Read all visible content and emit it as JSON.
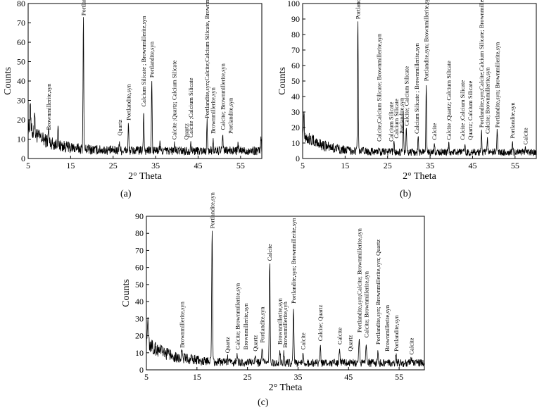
{
  "chart_data": [
    {
      "type": "line",
      "panel_label": "(a)",
      "xlabel": "2° Theta",
      "ylabel": "Counts",
      "xlim": [
        5,
        60
      ],
      "ylim": [
        0,
        80
      ],
      "x_ticks": [
        5,
        15,
        25,
        35,
        45,
        55
      ],
      "y_ticks": [
        0,
        10,
        20,
        30,
        40,
        50,
        60,
        70,
        80
      ],
      "background": 4,
      "peaks": [
        {
          "x": 5.5,
          "y": 20
        },
        {
          "x": 6.5,
          "y": 17
        },
        {
          "x": 9.8,
          "y": 11
        },
        {
          "x": 12.0,
          "y": 14
        },
        {
          "x": 18.0,
          "y": 72
        },
        {
          "x": 26.5,
          "y": 9
        },
        {
          "x": 28.6,
          "y": 17
        },
        {
          "x": 32.2,
          "y": 25
        },
        {
          "x": 34.1,
          "y": 40
        },
        {
          "x": 36.0,
          "y": 8
        },
        {
          "x": 39.4,
          "y": 7
        },
        {
          "x": 43.3,
          "y": 9
        },
        {
          "x": 47.1,
          "y": 19
        },
        {
          "x": 48.5,
          "y": 10
        },
        {
          "x": 50.8,
          "y": 13
        },
        {
          "x": 54.4,
          "y": 7
        },
        {
          "x": 59.8,
          "y": 12
        }
      ],
      "annotations": [
        {
          "x": 9.8,
          "y": 14,
          "text": "Brownmillerite,syn"
        },
        {
          "x": 18.0,
          "y": 73,
          "text": "Portlandite,syn"
        },
        {
          "x": 26.5,
          "y": 11,
          "text": "Quartz"
        },
        {
          "x": 28.6,
          "y": 19,
          "text": "Portlandite,syn"
        },
        {
          "x": 32.2,
          "y": 26,
          "text": "Calcium Silicate ; Brownmillerite,syn"
        },
        {
          "x": 34.1,
          "y": 41,
          "text": "Portlandite,syn"
        },
        {
          "x": 39.4,
          "y": 9,
          "text": "Calcite ;Quartz; Calcium Silicate"
        },
        {
          "x": 42.2,
          "y": 9,
          "text": "Quartz"
        },
        {
          "x": 43.3,
          "y": 10,
          "text": "Calcite ;Calcium Silicate"
        },
        {
          "x": 47.1,
          "y": 20,
          "text": "Portlandite,syn;Calcite;Calcium  Silicate, Brownmillerite,syn"
        },
        {
          "x": 48.5,
          "y": 12,
          "text": "Brownmillerite,syn"
        },
        {
          "x": 50.8,
          "y": 14,
          "text": "Calcite; Brownmillerite,syn"
        },
        {
          "x": 52.6,
          "y": 12,
          "text": "Portlandite,syn"
        }
      ]
    },
    {
      "type": "line",
      "panel_label": "(b)",
      "xlabel": "2° Theta",
      "ylabel": "Counts",
      "xlim": [
        5,
        60
      ],
      "ylim": [
        0,
        100
      ],
      "x_ticks": [
        5,
        15,
        25,
        35,
        45,
        55
      ],
      "y_ticks": [
        0,
        10,
        20,
        30,
        40,
        50,
        60,
        70,
        80,
        90,
        100
      ],
      "background": 4,
      "peaks": [
        {
          "x": 5.3,
          "y": 20
        },
        {
          "x": 18.0,
          "y": 88
        },
        {
          "x": 23.0,
          "y": 8
        },
        {
          "x": 26.5,
          "y": 12
        },
        {
          "x": 28.7,
          "y": 30
        },
        {
          "x": 29.4,
          "y": 18
        },
        {
          "x": 32.2,
          "y": 14
        },
        {
          "x": 34.1,
          "y": 48
        },
        {
          "x": 36.0,
          "y": 9
        },
        {
          "x": 39.4,
          "y": 9
        },
        {
          "x": 43.2,
          "y": 9
        },
        {
          "x": 47.1,
          "y": 18
        },
        {
          "x": 48.5,
          "y": 13
        },
        {
          "x": 50.8,
          "y": 18
        },
        {
          "x": 54.4,
          "y": 10
        },
        {
          "x": 57.4,
          "y": 6
        }
      ],
      "annotations": [
        {
          "x": 18.0,
          "y": 89,
          "text": "Portlandite,syn"
        },
        {
          "x": 23.0,
          "y": 10,
          "text": "Calcite;Calcium Silicate; Brownmillerite,syn"
        },
        {
          "x": 25.8,
          "y": 10,
          "text": "Calcium Silicate"
        },
        {
          "x": 27.0,
          "y": 12,
          "text": "Calcium Silicate"
        },
        {
          "x": 28.3,
          "y": 15,
          "text": "Portlandite,syn"
        },
        {
          "x": 29.4,
          "y": 20,
          "text": "Calcite; Calcium Silicate"
        },
        {
          "x": 31.8,
          "y": 15,
          "text": "Calcium Silicate ; Brownmillerite,syn"
        },
        {
          "x": 34.1,
          "y": 49,
          "text": "Portlandite,syn; Brownmillerite,syn"
        },
        {
          "x": 36.0,
          "y": 11,
          "text": "Calcite"
        },
        {
          "x": 39.4,
          "y": 11,
          "text": "Calcite ;Quartz; Calcium Silicate"
        },
        {
          "x": 42.6,
          "y": 11,
          "text": "Calcite ;Calcium Silicate"
        },
        {
          "x": 44.4,
          "y": 11,
          "text": "Quartz; Calcium Silicate"
        },
        {
          "x": 47.1,
          "y": 19,
          "text": "Portlandite,syn;Calcite;Calcium Silicate; Brownmillerite,syn"
        },
        {
          "x": 48.5,
          "y": 15,
          "text": "Calcite; Brownmillerite,syn"
        },
        {
          "x": 50.8,
          "y": 19,
          "text": "Portlandite,syn; Brownmillerite,syn"
        },
        {
          "x": 54.4,
          "y": 12,
          "text": "Portlandite,syn"
        },
        {
          "x": 57.4,
          "y": 8,
          "text": "Calcite"
        }
      ]
    },
    {
      "type": "line",
      "panel_label": "(c)",
      "xlabel": "2° Theta",
      "ylabel": "Counts",
      "xlim": [
        5,
        60
      ],
      "ylim": [
        0,
        90
      ],
      "x_ticks": [
        5,
        15,
        25,
        35,
        45,
        55
      ],
      "y_ticks": [
        0,
        10,
        20,
        30,
        40,
        50,
        60,
        70,
        80,
        90
      ],
      "background": 4,
      "peaks": [
        {
          "x": 5.3,
          "y": 20
        },
        {
          "x": 12.0,
          "y": 10
        },
        {
          "x": 18.0,
          "y": 81
        },
        {
          "x": 21.0,
          "y": 7
        },
        {
          "x": 23.0,
          "y": 9
        },
        {
          "x": 26.5,
          "y": 8
        },
        {
          "x": 27.9,
          "y": 13
        },
        {
          "x": 29.4,
          "y": 62
        },
        {
          "x": 31.4,
          "y": 12
        },
        {
          "x": 32.2,
          "y": 10
        },
        {
          "x": 34.1,
          "y": 37
        },
        {
          "x": 36.0,
          "y": 9
        },
        {
          "x": 39.4,
          "y": 14
        },
        {
          "x": 43.2,
          "y": 12
        },
        {
          "x": 47.1,
          "y": 19
        },
        {
          "x": 48.5,
          "y": 16
        },
        {
          "x": 50.8,
          "y": 12
        },
        {
          "x": 54.4,
          "y": 8
        },
        {
          "x": 57.4,
          "y": 6
        }
      ],
      "annotations": [
        {
          "x": 12.0,
          "y": 12,
          "text": "Brownmillerite,syn"
        },
        {
          "x": 18.0,
          "y": 82,
          "text": "Portlandite,syn"
        },
        {
          "x": 21.0,
          "y": 9,
          "text": "Quartz"
        },
        {
          "x": 23.0,
          "y": 11,
          "text": "Calcite; Brownmillerite,syn"
        },
        {
          "x": 24.6,
          "y": 11,
          "text": "Brownmillerite,syn"
        },
        {
          "x": 26.5,
          "y": 10,
          "text": "Quartz"
        },
        {
          "x": 27.9,
          "y": 15,
          "text": "Portlandite,syn"
        },
        {
          "x": 29.4,
          "y": 63,
          "text": "Calcite"
        },
        {
          "x": 31.4,
          "y": 14,
          "text": "Brownmillerite,syn"
        },
        {
          "x": 32.4,
          "y": 12,
          "text": "Brownmillerite,syn"
        },
        {
          "x": 34.1,
          "y": 38,
          "text": "Portlandite,syn; Brownmillerite,syn"
        },
        {
          "x": 36.0,
          "y": 11,
          "text": "Calcite"
        },
        {
          "x": 39.4,
          "y": 16,
          "text": "Calcite; Quartz"
        },
        {
          "x": 43.2,
          "y": 14,
          "text": "Calcite"
        },
        {
          "x": 45.3,
          "y": 10,
          "text": "Quartz"
        },
        {
          "x": 47.1,
          "y": 21,
          "text": "Portlandite,syn;Calcite; Brownmillerite,syn"
        },
        {
          "x": 48.5,
          "y": 18,
          "text": "Calcite; Brownmillerite,syn"
        },
        {
          "x": 50.8,
          "y": 14,
          "text": "Portlandite,syn; Brownmillerite,syn; Quartz"
        },
        {
          "x": 52.6,
          "y": 10,
          "text": "Brownmillerite,syn"
        },
        {
          "x": 54.4,
          "y": 10,
          "text": "Portlandite,syn"
        },
        {
          "x": 57.4,
          "y": 8,
          "text": "Calcite"
        }
      ]
    }
  ]
}
